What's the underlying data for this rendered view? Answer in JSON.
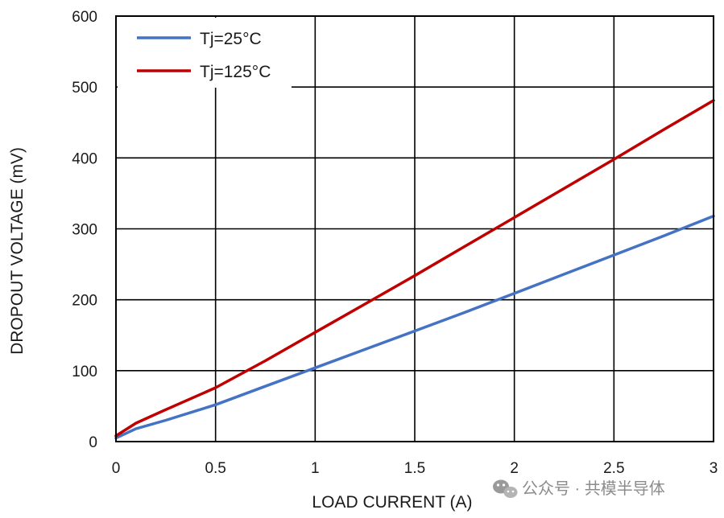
{
  "chart_data": {
    "type": "line",
    "xlabel": "LOAD CURRENT (A)",
    "ylabel": "DROPOUT VOLTAGE (mV)",
    "xlim": [
      0,
      3
    ],
    "ylim": [
      0,
      600
    ],
    "x_ticks": [
      0,
      0.5,
      1,
      1.5,
      2,
      2.5,
      3
    ],
    "x_tick_labels": [
      "0",
      "0.5",
      "1",
      "1.5",
      "2",
      "2.5",
      "3"
    ],
    "y_ticks": [
      0,
      100,
      200,
      300,
      400,
      500,
      600
    ],
    "y_tick_labels": [
      "0",
      "100",
      "200",
      "300",
      "400",
      "500",
      "600"
    ],
    "grid": true,
    "legend_position": "top-left",
    "series": [
      {
        "name": "Tj=25°C",
        "color": "#4472c4",
        "points": [
          [
            0,
            5
          ],
          [
            0.1,
            18
          ],
          [
            0.25,
            30
          ],
          [
            0.5,
            52
          ],
          [
            0.75,
            78
          ],
          [
            1,
            104
          ],
          [
            1.25,
            130
          ],
          [
            1.5,
            156
          ],
          [
            1.75,
            182
          ],
          [
            2,
            209
          ],
          [
            2.25,
            236
          ],
          [
            2.5,
            263
          ],
          [
            2.75,
            290
          ],
          [
            3,
            318
          ]
        ]
      },
      {
        "name": "Tj=125°C",
        "color": "#c00000",
        "points": [
          [
            0,
            8
          ],
          [
            0.1,
            26
          ],
          [
            0.25,
            45
          ],
          [
            0.5,
            76
          ],
          [
            0.75,
            114
          ],
          [
            1,
            154
          ],
          [
            1.25,
            194
          ],
          [
            1.5,
            234
          ],
          [
            1.75,
            275
          ],
          [
            2,
            316
          ],
          [
            2.25,
            357
          ],
          [
            2.5,
            398
          ],
          [
            2.75,
            440
          ],
          [
            3,
            481
          ]
        ]
      }
    ]
  },
  "watermark": {
    "text": "公众号 · 共模半导体",
    "icon": "wechat-icon"
  }
}
